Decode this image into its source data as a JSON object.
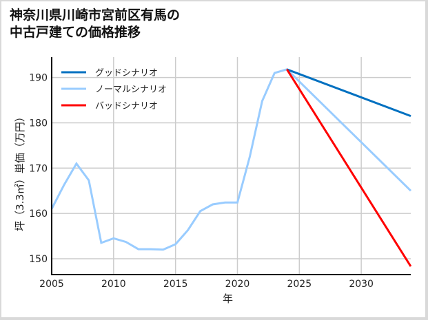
{
  "title_line1": "神奈川県川崎市宮前区有馬の",
  "title_line2": "中古戸建ての価格推移",
  "chart_data": {
    "type": "line",
    "title": "神奈川県川崎市宮前区有馬の中古戸建ての価格推移",
    "xlabel": "年",
    "ylabel": "坪（3.3㎡）単価（万円）",
    "xlim": [
      2005,
      2034
    ],
    "ylim": [
      146.5,
      194.5
    ],
    "xticks": [
      2005,
      2010,
      2015,
      2020,
      2025,
      2030
    ],
    "yticks": [
      150,
      160,
      170,
      180,
      190
    ],
    "grid": true,
    "legend_position": "upper left",
    "series": [
      {
        "name": "グッドシナリオ",
        "color": "#0070c0",
        "x": [
          2024,
          2034
        ],
        "values": [
          191.8,
          181.5
        ]
      },
      {
        "name": "ノーマルシナリオ",
        "color": "#99ccff",
        "x": [
          2005,
          2006,
          2007,
          2008,
          2009,
          2010,
          2011,
          2012,
          2013,
          2014,
          2015,
          2016,
          2017,
          2018,
          2019,
          2020,
          2021,
          2022,
          2023,
          2024,
          2034
        ],
        "values": [
          161.0,
          166.3,
          171.0,
          167.3,
          153.5,
          154.5,
          153.7,
          152.1,
          152.1,
          152.0,
          153.2,
          156.3,
          160.5,
          162.0,
          162.4,
          162.4,
          172.5,
          184.8,
          191.0,
          191.8,
          165.0
        ]
      },
      {
        "name": "バッドシナリオ",
        "color": "#ff0000",
        "x": [
          2024,
          2034
        ],
        "values": [
          191.8,
          148.3
        ]
      }
    ]
  }
}
